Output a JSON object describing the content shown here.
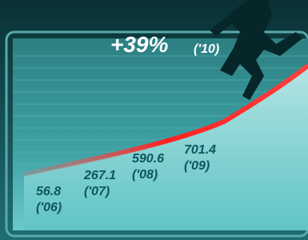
{
  "headline": {
    "value": "+39%",
    "year": "('10)"
  },
  "points": [
    {
      "value": "56.8",
      "year": "('06)"
    },
    {
      "value": "267.1",
      "year": "('07)"
    },
    {
      "value": "590.6",
      "year": "('08)"
    },
    {
      "value": "701.4",
      "year": "('09)"
    }
  ]
}
